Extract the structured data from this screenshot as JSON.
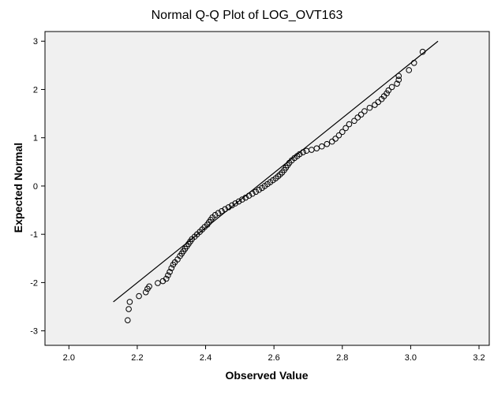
{
  "chart_data": {
    "type": "scatter",
    "title": "Normal Q-Q Plot of LOG_OVT163",
    "xlabel": "Observed Value",
    "ylabel": "Expected Normal",
    "xlim": [
      1.93,
      3.23
    ],
    "ylim": [
      -3.3,
      3.2
    ],
    "x_ticks": [
      "2.0",
      "2.2",
      "2.4",
      "2.6",
      "2.8",
      "3.0",
      "3.2"
    ],
    "y_ticks": [
      "3",
      "2",
      "1",
      "0",
      "-1",
      "-2",
      "-3"
    ],
    "reference_line": {
      "x": [
        2.13,
        3.08
      ],
      "y": [
        -2.4,
        3.0
      ]
    },
    "grid": false,
    "background": "#f0f0f0",
    "marker_color": "#000000",
    "points": [
      [
        2.172,
        -2.78
      ],
      [
        2.175,
        -2.55
      ],
      [
        2.178,
        -2.4
      ],
      [
        2.205,
        -2.28
      ],
      [
        2.225,
        -2.2
      ],
      [
        2.23,
        -2.13
      ],
      [
        2.235,
        -2.08
      ],
      [
        2.26,
        -2.01
      ],
      [
        2.275,
        -1.97
      ],
      [
        2.285,
        -1.92
      ],
      [
        2.29,
        -1.85
      ],
      [
        2.295,
        -1.78
      ],
      [
        2.3,
        -1.7
      ],
      [
        2.305,
        -1.63
      ],
      [
        2.31,
        -1.58
      ],
      [
        2.318,
        -1.52
      ],
      [
        2.325,
        -1.45
      ],
      [
        2.33,
        -1.4
      ],
      [
        2.335,
        -1.35
      ],
      [
        2.34,
        -1.3
      ],
      [
        2.345,
        -1.25
      ],
      [
        2.35,
        -1.2
      ],
      [
        2.355,
        -1.15
      ],
      [
        2.36,
        -1.1
      ],
      [
        2.368,
        -1.05
      ],
      [
        2.375,
        -1.0
      ],
      [
        2.383,
        -0.95
      ],
      [
        2.39,
        -0.9
      ],
      [
        2.397,
        -0.85
      ],
      [
        2.405,
        -0.8
      ],
      [
        2.41,
        -0.75
      ],
      [
        2.415,
        -0.7
      ],
      [
        2.42,
        -0.65
      ],
      [
        2.428,
        -0.6
      ],
      [
        2.437,
        -0.56
      ],
      [
        2.447,
        -0.52
      ],
      [
        2.457,
        -0.48
      ],
      [
        2.467,
        -0.44
      ],
      [
        2.477,
        -0.4
      ],
      [
        2.487,
        -0.36
      ],
      [
        2.497,
        -0.32
      ],
      [
        2.507,
        -0.28
      ],
      [
        2.517,
        -0.24
      ],
      [
        2.527,
        -0.2
      ],
      [
        2.537,
        -0.16
      ],
      [
        2.547,
        -0.12
      ],
      [
        2.556,
        -0.08
      ],
      [
        2.565,
        -0.04
      ],
      [
        2.573,
        0.0
      ],
      [
        2.581,
        0.04
      ],
      [
        2.589,
        0.08
      ],
      [
        2.597,
        0.12
      ],
      [
        2.605,
        0.16
      ],
      [
        2.612,
        0.2
      ],
      [
        2.618,
        0.24
      ],
      [
        2.624,
        0.28
      ],
      [
        2.63,
        0.33
      ],
      [
        2.635,
        0.38
      ],
      [
        2.64,
        0.43
      ],
      [
        2.645,
        0.48
      ],
      [
        2.652,
        0.53
      ],
      [
        2.66,
        0.58
      ],
      [
        2.668,
        0.62
      ],
      [
        2.675,
        0.66
      ],
      [
        2.685,
        0.7
      ],
      [
        2.695,
        0.73
      ],
      [
        2.71,
        0.75
      ],
      [
        2.725,
        0.78
      ],
      [
        2.74,
        0.82
      ],
      [
        2.755,
        0.87
      ],
      [
        2.77,
        0.92
      ],
      [
        2.78,
        0.98
      ],
      [
        2.79,
        1.05
      ],
      [
        2.8,
        1.12
      ],
      [
        2.81,
        1.2
      ],
      [
        2.82,
        1.28
      ],
      [
        2.835,
        1.35
      ],
      [
        2.845,
        1.42
      ],
      [
        2.855,
        1.48
      ],
      [
        2.865,
        1.55
      ],
      [
        2.88,
        1.62
      ],
      [
        2.895,
        1.68
      ],
      [
        2.905,
        1.74
      ],
      [
        2.915,
        1.8
      ],
      [
        2.922,
        1.86
      ],
      [
        2.93,
        1.92
      ],
      [
        2.935,
        1.98
      ],
      [
        2.945,
        2.05
      ],
      [
        2.96,
        2.12
      ],
      [
        2.965,
        2.2
      ],
      [
        2.965,
        2.28
      ],
      [
        2.995,
        2.4
      ],
      [
        3.01,
        2.55
      ],
      [
        3.035,
        2.78
      ]
    ]
  }
}
